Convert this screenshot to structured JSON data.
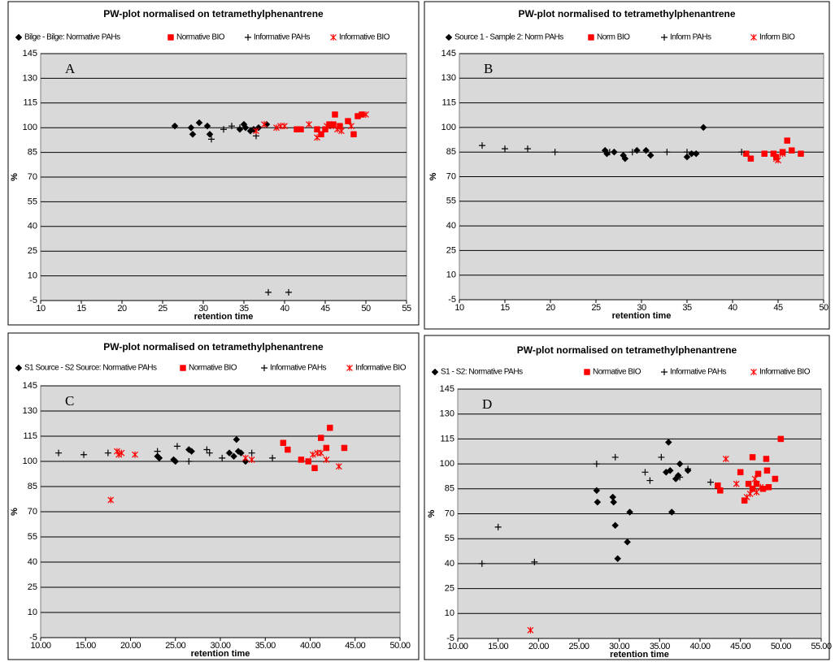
{
  "chart_data": [
    {
      "type": "scatter",
      "title": "PW-plot normalised on tetramethylphenantrene",
      "annotation": "A",
      "x_label": "retention time",
      "y_label": "%",
      "xlim": [
        10,
        55
      ],
      "xticks": [
        10,
        15,
        20,
        25,
        30,
        35,
        40,
        45,
        50,
        55
      ],
      "ylim": [
        -5,
        145
      ],
      "yticks": [
        -5,
        10,
        25,
        40,
        55,
        70,
        85,
        100,
        115,
        130,
        145
      ],
      "grid": true,
      "series": [
        {
          "name": "Bilge - Bilge: Normative PAHs",
          "color": "#000000",
          "marker": "diamond",
          "x": [
            26.5,
            28.5,
            28.7,
            29.5,
            30.5,
            30.8,
            34.5,
            35,
            35.2,
            35.8,
            36.2,
            36.8,
            37.8
          ],
          "values": [
            101,
            100,
            96,
            103,
            101,
            96,
            99,
            102,
            100,
            98,
            99,
            100,
            102
          ]
        },
        {
          "name": "Normative BIO",
          "color": "#ff0000",
          "marker": "square",
          "x": [
            41.5,
            42,
            44,
            44.5,
            45,
            45.5,
            46,
            46.2,
            46.8,
            47.8,
            48.5,
            49,
            49.5
          ],
          "values": [
            99,
            99,
            99,
            96,
            99,
            102,
            102,
            108,
            101,
            104,
            96,
            107,
            108
          ]
        },
        {
          "name": "Informative PAHs",
          "color": "#000000",
          "marker": "plus",
          "x": [
            31,
            32.5,
            33.5,
            34.5,
            36.5,
            38,
            40.5
          ],
          "values": [
            93,
            99,
            101,
            100,
            95,
            0,
            0
          ]
        },
        {
          "name": "Informative BIO",
          "color": "#ff0000",
          "marker": "asterisk",
          "x": [
            36.5,
            37.5,
            39,
            39.5,
            40,
            43,
            44,
            45.2,
            46,
            46.5,
            47,
            48.2,
            50
          ],
          "values": [
            98,
            102,
            100,
            101,
            101,
            102,
            94,
            101,
            101,
            99,
            98,
            101,
            108
          ]
        }
      ]
    },
    {
      "type": "scatter",
      "title": "PW-plot normalised to tetramethylphenantrene",
      "annotation": "B",
      "x_label": "retention time",
      "y_label": "%",
      "xlim": [
        10,
        50
      ],
      "xticks": [
        10,
        15,
        20,
        25,
        30,
        35,
        40,
        45,
        50
      ],
      "ylim": [
        -5,
        145
      ],
      "yticks": [
        -5,
        10,
        25,
        40,
        55,
        70,
        85,
        100,
        115,
        130,
        145
      ],
      "grid": true,
      "series": [
        {
          "name": "Source 1 - Sample 2: Norm PAHs",
          "color": "#000000",
          "marker": "diamond",
          "x": [
            26,
            26.2,
            27,
            28,
            28.2,
            29.5,
            30.5,
            31,
            35,
            35.5,
            36,
            36.8
          ],
          "values": [
            86,
            84,
            85,
            83,
            81,
            86,
            86,
            83,
            82,
            84,
            84,
            100
          ]
        },
        {
          "name": "Norm BIO",
          "color": "#ff0000",
          "marker": "square",
          "x": [
            41.5,
            42,
            43.5,
            44.5,
            44.8,
            45.5,
            46,
            46.5,
            47.5
          ],
          "values": [
            84,
            81,
            84,
            84,
            82,
            85,
            92,
            86,
            84
          ]
        },
        {
          "name": "Inform PAHs",
          "color": "#000000",
          "marker": "plus",
          "x": [
            12.5,
            15,
            17.5,
            20.5,
            26.5,
            29,
            32.8,
            35,
            41
          ],
          "values": [
            89,
            87,
            87,
            85,
            85,
            85,
            85,
            85,
            85
          ]
        },
        {
          "name": "Inform BIO",
          "color": "#ff0000",
          "marker": "asterisk",
          "x": [
            44.8,
            45,
            45.5
          ],
          "values": [
            81,
            80,
            84
          ]
        }
      ]
    },
    {
      "type": "scatter",
      "title": "PW-plot normalised on tetramethylphenantrene",
      "annotation": "C",
      "x_label": "retention time",
      "y_label": "%",
      "xlim": [
        10,
        50
      ],
      "xticks": [
        {
          "value": 10,
          "label": "10.00"
        },
        {
          "value": 15,
          "label": "15.00"
        },
        {
          "value": 20,
          "label": "20.00"
        },
        {
          "value": 25,
          "label": "25.00"
        },
        {
          "value": 30,
          "label": "30.00"
        },
        {
          "value": 35,
          "label": "35.00"
        },
        {
          "value": 40,
          "label": "40.00"
        },
        {
          "value": 45,
          "label": "45.00"
        },
        {
          "value": 50,
          "label": "50.00"
        }
      ],
      "ylim": [
        -5,
        145
      ],
      "yticks": [
        -5,
        10,
        25,
        40,
        55,
        70,
        85,
        100,
        115,
        130,
        145
      ],
      "grid": true,
      "series": [
        {
          "name": "S1 Source - S2 Source: Normative PAHs",
          "color": "#000000",
          "marker": "diamond",
          "x": [
            23,
            23.2,
            24.8,
            25,
            26.5,
            26.8,
            31,
            31.5,
            31.8,
            32,
            32.3,
            32.8
          ],
          "values": [
            103,
            102,
            101,
            100,
            107,
            106,
            105,
            103,
            113,
            106,
            105,
            100
          ]
        },
        {
          "name": "Normative BIO",
          "color": "#ff0000",
          "marker": "square",
          "x": [
            37,
            37.5,
            39,
            39.8,
            40.5,
            41.2,
            41.8,
            42.2,
            43.8
          ],
          "values": [
            111,
            107,
            101,
            100,
            96,
            114,
            108,
            120,
            108
          ]
        },
        {
          "name": "Informative PAHs",
          "color": "#000000",
          "marker": "plus",
          "x": [
            12,
            14.8,
            17.5,
            23,
            25.2,
            26.5,
            28.5,
            28.8,
            30.2,
            33.5,
            35.8
          ],
          "values": [
            105,
            104,
            105,
            106,
            109,
            100,
            107,
            105,
            102,
            105,
            102
          ]
        },
        {
          "name": "Informative BIO",
          "color": "#ff0000",
          "marker": "asterisk",
          "x": [
            17.8,
            18.5,
            18.7,
            19,
            20.5,
            32.8,
            33.5,
            40.3,
            40.8,
            41.2,
            41.8,
            43.2
          ],
          "values": [
            77,
            106,
            104,
            105,
            104,
            102,
            101,
            104,
            105,
            105,
            101,
            97
          ]
        }
      ]
    },
    {
      "type": "scatter",
      "title": "PW-plot normalised on tetramethylphenantrene",
      "annotation": "D",
      "x_label": "retention time",
      "y_label": "%",
      "xlim": [
        10,
        55
      ],
      "xticks": [
        {
          "value": 10,
          "label": "10.00"
        },
        {
          "value": 15,
          "label": "15.00"
        },
        {
          "value": 20,
          "label": "20.00"
        },
        {
          "value": 25,
          "label": "25.00"
        },
        {
          "value": 30,
          "label": "30.00"
        },
        {
          "value": 35,
          "label": "35.00"
        },
        {
          "value": 40,
          "label": "40.00"
        },
        {
          "value": 45,
          "label": "45.00"
        },
        {
          "value": 50,
          "label": "50.00"
        },
        {
          "value": 55,
          "label": "55.00"
        }
      ],
      "ylim": [
        -5,
        145
      ],
      "yticks": [
        -5,
        10,
        25,
        40,
        55,
        70,
        85,
        100,
        115,
        130,
        145
      ],
      "grid": true,
      "series": [
        {
          "name": "S1 - S2: Normative PAHs",
          "color": "#000000",
          "marker": "diamond",
          "x": [
            27.2,
            27.3,
            29.2,
            29.3,
            29.5,
            29.8,
            31,
            31.3,
            35.8,
            36.1,
            36.3,
            36.5,
            37,
            37.3,
            37.5,
            38.5
          ],
          "values": [
            84,
            77,
            80,
            77,
            63,
            43,
            53,
            71,
            95,
            113,
            96,
            71,
            91,
            93,
            100,
            96
          ]
        },
        {
          "name": "Normative BIO",
          "color": "#ff0000",
          "marker": "square",
          "x": [
            42.2,
            42.5,
            45,
            45.5,
            46,
            46.5,
            46.5,
            47,
            47.2,
            47.8,
            48.2,
            48.3,
            48.5,
            49.3,
            50
          ],
          "values": [
            87,
            84,
            95,
            78,
            88,
            104,
            85,
            88,
            94,
            85,
            103,
            96,
            86,
            91,
            115
          ]
        },
        {
          "name": "Informative PAHs",
          "color": "#000000",
          "marker": "plus",
          "x": [
            13,
            15,
            19.5,
            27.2,
            29.5,
            33.2,
            33.8,
            35.2,
            37.5,
            38.5,
            41.3
          ],
          "values": [
            40,
            62,
            41,
            100,
            104,
            95,
            90,
            104,
            92,
            97,
            89
          ]
        },
        {
          "name": "Informative BIO",
          "color": "#ff0000",
          "marker": "asterisk",
          "x": [
            19,
            43.2,
            44.5,
            45.8,
            46.2,
            46.8,
            47,
            47.5
          ],
          "values": [
            0,
            103,
            88,
            80,
            82,
            91,
            83,
            86
          ]
        }
      ]
    }
  ]
}
